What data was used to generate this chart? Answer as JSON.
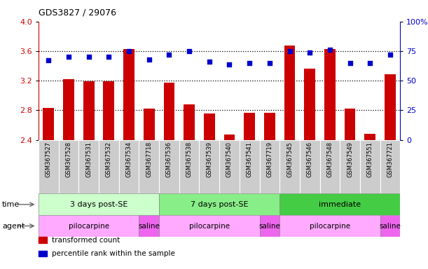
{
  "title": "GDS3827 / 29076",
  "samples": [
    "GSM367527",
    "GSM367528",
    "GSM367531",
    "GSM367532",
    "GSM367534",
    "GSM367718",
    "GSM367536",
    "GSM367538",
    "GSM367539",
    "GSM367540",
    "GSM367541",
    "GSM367719",
    "GSM367545",
    "GSM367546",
    "GSM367548",
    "GSM367549",
    "GSM367551",
    "GSM367721"
  ],
  "transformed_count": [
    2.83,
    3.22,
    3.19,
    3.19,
    3.63,
    2.82,
    3.17,
    2.88,
    2.76,
    2.47,
    2.77,
    2.77,
    3.68,
    3.36,
    3.63,
    2.82,
    2.48,
    3.29
  ],
  "percentile_rank": [
    67,
    70,
    70,
    70,
    75,
    68,
    72,
    75,
    66,
    64,
    65,
    65,
    75,
    74,
    76,
    65,
    65,
    72
  ],
  "ylim_left": [
    2.4,
    4.0
  ],
  "ylim_right": [
    0,
    100
  ],
  "yticks_left": [
    2.4,
    2.8,
    3.2,
    3.6,
    4.0
  ],
  "yticks_right": [
    0,
    25,
    50,
    75,
    100
  ],
  "ytick_labels_right": [
    "0",
    "25",
    "50",
    "75",
    "100%"
  ],
  "hlines": [
    2.8,
    3.2,
    3.6
  ],
  "bar_color": "#CC0000",
  "dot_color": "#0000CC",
  "time_groups": [
    {
      "label": "3 days post-SE",
      "start": 0,
      "end": 5,
      "color": "#CCFFCC"
    },
    {
      "label": "7 days post-SE",
      "start": 6,
      "end": 11,
      "color": "#88EE88"
    },
    {
      "label": "immediate",
      "start": 12,
      "end": 17,
      "color": "#44CC44"
    }
  ],
  "agent_groups": [
    {
      "label": "pilocarpine",
      "start": 0,
      "end": 4,
      "color": "#FFAAFF"
    },
    {
      "label": "saline",
      "start": 5,
      "end": 5,
      "color": "#EE66EE"
    },
    {
      "label": "pilocarpine",
      "start": 6,
      "end": 10,
      "color": "#FFAAFF"
    },
    {
      "label": "saline",
      "start": 11,
      "end": 11,
      "color": "#EE66EE"
    },
    {
      "label": "pilocarpine",
      "start": 12,
      "end": 16,
      "color": "#FFAAFF"
    },
    {
      "label": "saline",
      "start": 17,
      "end": 17,
      "color": "#EE66EE"
    }
  ],
  "left_axis_color": "#CC0000",
  "right_axis_color": "#0000CC",
  "tick_label_color": "#C8C8C8",
  "legend_items": [
    {
      "label": "transformed count",
      "color": "#CC0000"
    },
    {
      "label": "percentile rank within the sample",
      "color": "#0000CC"
    }
  ]
}
